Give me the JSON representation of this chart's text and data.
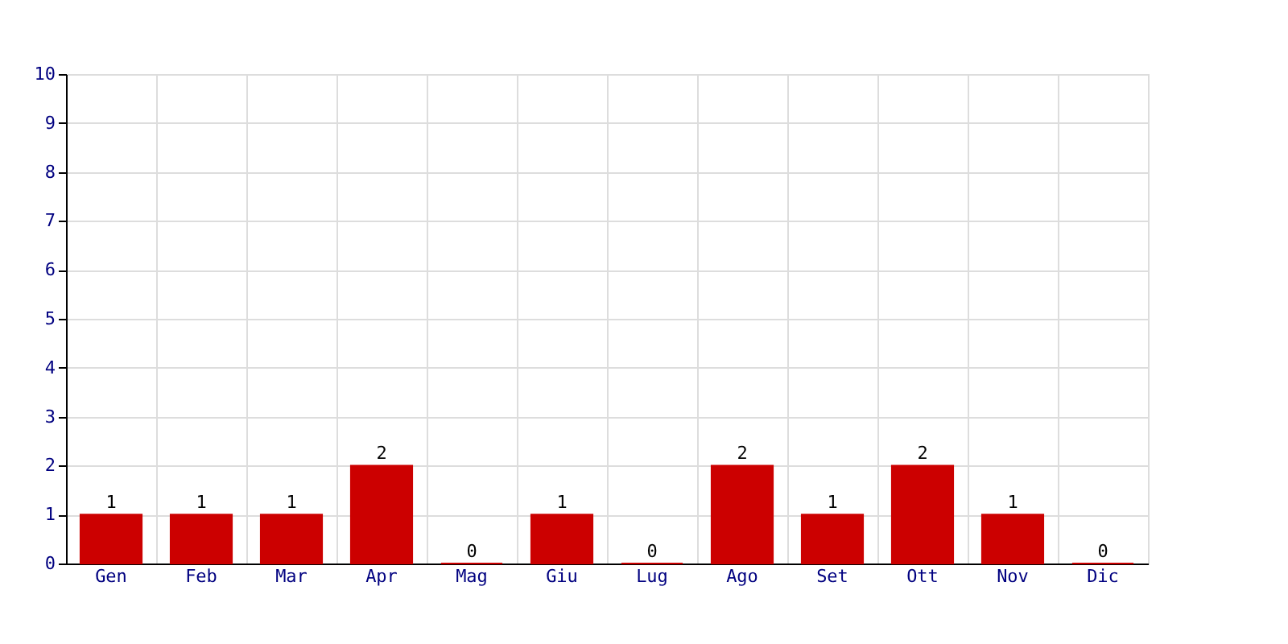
{
  "chart_data": {
    "type": "bar",
    "categories": [
      "Gen",
      "Feb",
      "Mar",
      "Apr",
      "Mag",
      "Giu",
      "Lug",
      "Ago",
      "Set",
      "Ott",
      "Nov",
      "Dic"
    ],
    "values": [
      1,
      1,
      1,
      2,
      0,
      1,
      0,
      2,
      1,
      2,
      1,
      0
    ],
    "color": "#cc0000",
    "ylim": [
      0,
      10
    ],
    "yticks": [
      0,
      1,
      2,
      3,
      4,
      5,
      6,
      7,
      8,
      9,
      10
    ],
    "grid": true,
    "data_labels": true
  }
}
